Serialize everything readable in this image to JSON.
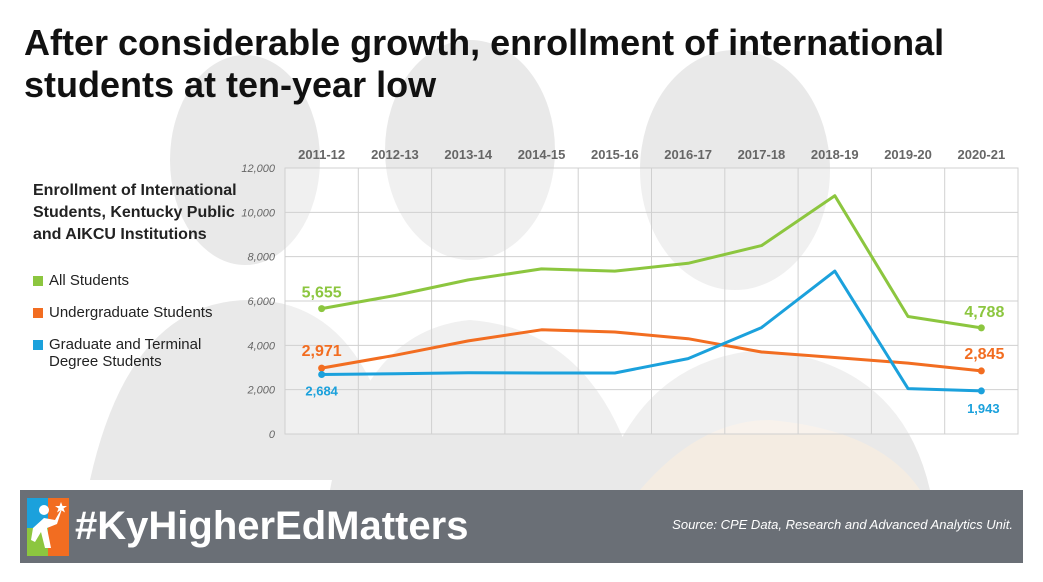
{
  "headline": "After considerable growth, enrollment of international students at ten-year low",
  "legend": {
    "title": "Enrollment of International Students, Kentucky Public and AIKCU Institutions",
    "items": [
      {
        "label": "All Students",
        "color": "#8cc63f"
      },
      {
        "label": "Undergraduate Students",
        "color": "#f26d21"
      },
      {
        "label": "Graduate and Terminal Degree Students",
        "color": "#1ba1dc"
      }
    ]
  },
  "footer": {
    "hashtag": "#KyHigherEdMatters",
    "source": "Source: CPE Data, Research and Advanced Analytics Unit."
  },
  "chart_data": {
    "type": "line",
    "categories": [
      "2011-12",
      "2012-13",
      "2013-14",
      "2014-15",
      "2015-16",
      "2016-17",
      "2017-18",
      "2018-19",
      "2019-20",
      "2020-21"
    ],
    "ylim": [
      0,
      12000
    ],
    "yticks": [
      {
        "value": 0,
        "label": "0"
      },
      {
        "value": 2000,
        "label": "2,000"
      },
      {
        "value": 4000,
        "label": "4,000"
      },
      {
        "value": 6000,
        "label": "6,000"
      },
      {
        "value": 8000,
        "label": "8,000"
      },
      {
        "value": 10000,
        "label": "10,000"
      },
      {
        "value": 12000,
        "label": "12,000"
      }
    ],
    "grid": true,
    "series": [
      {
        "name": "All Students",
        "color": "#8cc63f",
        "values": [
          5655,
          6250,
          6950,
          7450,
          7350,
          7700,
          8500,
          10750,
          5300,
          4788
        ]
      },
      {
        "name": "Undergraduate Students",
        "color": "#f26d21",
        "values": [
          2971,
          3550,
          4200,
          4700,
          4600,
          4300,
          3700,
          3450,
          3200,
          2845
        ]
      },
      {
        "name": "Graduate and Terminal Degree Students",
        "color": "#1ba1dc",
        "values": [
          2684,
          2720,
          2760,
          2750,
          2750,
          3400,
          4800,
          7350,
          2050,
          1943
        ]
      }
    ],
    "data_labels": [
      {
        "series": 0,
        "index": 0,
        "text": "5,655"
      },
      {
        "series": 0,
        "index": 9,
        "text": "4,788"
      },
      {
        "series": 1,
        "index": 0,
        "text": "2,971"
      },
      {
        "series": 1,
        "index": 9,
        "text": "2,845"
      },
      {
        "series": 2,
        "index": 0,
        "text": "2,684"
      },
      {
        "series": 2,
        "index": 9,
        "text": "1,943"
      }
    ]
  }
}
